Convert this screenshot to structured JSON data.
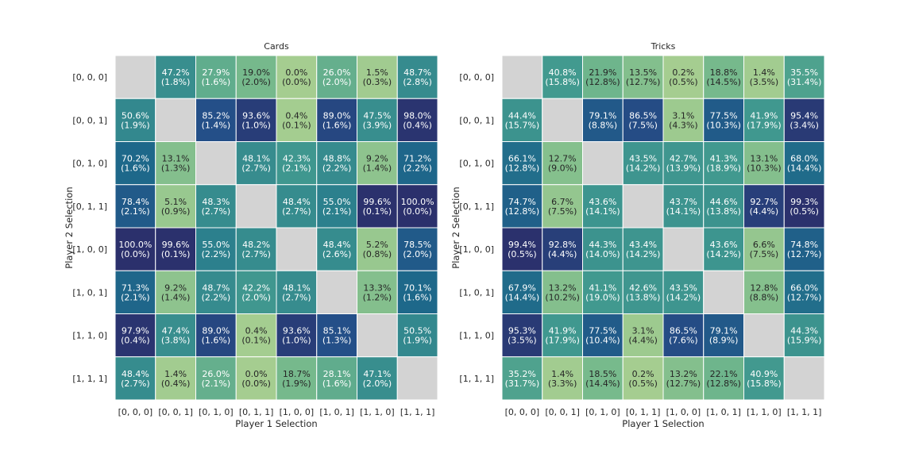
{
  "chart_data": [
    {
      "type": "heatmap",
      "title": "Cards",
      "xlabel": "Player 1 Selection",
      "ylabel": "Player 2 Selection",
      "x_categories": [
        "[0, 0, 0]",
        "[0, 0, 1]",
        "[0, 1, 0]",
        "[0, 1, 1]",
        "[1, 0, 0]",
        "[1, 0, 1]",
        "[1, 1, 0]",
        "[1, 1, 1]"
      ],
      "y_categories": [
        "[0, 0, 0]",
        "[0, 0, 1]",
        "[0, 1, 0]",
        "[0, 1, 1]",
        "[1, 0, 0]",
        "[1, 0, 1]",
        "[1, 1, 0]",
        "[1, 1, 1]"
      ],
      "values": [
        [
          null,
          47.2,
          27.9,
          19.0,
          0.0,
          26.0,
          1.5,
          48.7
        ],
        [
          50.6,
          null,
          85.2,
          93.6,
          0.4,
          89.0,
          47.5,
          98.0
        ],
        [
          70.2,
          13.1,
          null,
          48.1,
          42.3,
          48.8,
          9.2,
          71.2
        ],
        [
          78.4,
          5.1,
          48.3,
          null,
          48.4,
          55.0,
          99.6,
          100.0
        ],
        [
          100.0,
          99.6,
          55.0,
          48.2,
          null,
          48.4,
          5.2,
          78.5
        ],
        [
          71.3,
          9.2,
          48.7,
          42.2,
          48.1,
          null,
          13.3,
          70.1
        ],
        [
          97.9,
          47.4,
          89.0,
          0.4,
          93.6,
          85.1,
          null,
          50.5
        ],
        [
          48.4,
          1.4,
          26.0,
          0.0,
          18.7,
          28.1,
          47.1,
          null
        ]
      ],
      "errors": [
        [
          null,
          1.8,
          1.6,
          2.0,
          0.0,
          2.0,
          0.3,
          2.8
        ],
        [
          1.9,
          null,
          1.4,
          1.0,
          0.1,
          1.6,
          3.9,
          0.4
        ],
        [
          1.6,
          1.3,
          null,
          2.7,
          2.1,
          2.2,
          1.4,
          2.2
        ],
        [
          2.1,
          0.9,
          2.7,
          null,
          2.7,
          2.1,
          0.1,
          0.0
        ],
        [
          0.0,
          0.1,
          2.2,
          2.7,
          null,
          2.6,
          0.8,
          2.0
        ],
        [
          2.1,
          1.4,
          2.2,
          2.0,
          2.7,
          null,
          1.2,
          1.6
        ],
        [
          0.4,
          3.8,
          1.6,
          0.1,
          1.0,
          1.3,
          null,
          1.9
        ],
        [
          2.7,
          0.4,
          2.1,
          0.0,
          1.9,
          1.6,
          2.0,
          null
        ]
      ],
      "vlim": [
        0,
        100
      ],
      "diagonal_color": "#d3d3d3",
      "colormap": "crest",
      "grid": false,
      "legend": "none"
    },
    {
      "type": "heatmap",
      "title": "Tricks",
      "xlabel": "Player 1 Selection",
      "ylabel": "Player 2 Selection",
      "x_categories": [
        "[0, 0, 0]",
        "[0, 0, 1]",
        "[0, 1, 0]",
        "[0, 1, 1]",
        "[1, 0, 0]",
        "[1, 0, 1]",
        "[1, 1, 0]",
        "[1, 1, 1]"
      ],
      "y_categories": [
        "[0, 0, 0]",
        "[0, 0, 1]",
        "[0, 1, 0]",
        "[0, 1, 1]",
        "[1, 0, 0]",
        "[1, 0, 1]",
        "[1, 1, 0]",
        "[1, 1, 1]"
      ],
      "values": [
        [
          null,
          40.8,
          21.9,
          13.5,
          0.2,
          18.8,
          1.4,
          35.5
        ],
        [
          44.4,
          null,
          79.1,
          86.5,
          3.1,
          77.5,
          41.9,
          95.4
        ],
        [
          66.1,
          12.7,
          null,
          43.5,
          42.7,
          41.3,
          13.1,
          68.0
        ],
        [
          74.7,
          6.7,
          43.6,
          null,
          43.7,
          44.6,
          92.7,
          99.3
        ],
        [
          99.4,
          92.8,
          44.3,
          43.4,
          null,
          43.6,
          6.6,
          74.8
        ],
        [
          67.9,
          13.2,
          41.1,
          42.6,
          43.5,
          null,
          12.8,
          66.0
        ],
        [
          95.3,
          41.9,
          77.5,
          3.1,
          86.5,
          79.1,
          null,
          44.3
        ],
        [
          35.2,
          1.4,
          18.5,
          0.2,
          13.2,
          22.1,
          40.9,
          null
        ]
      ],
      "errors": [
        [
          null,
          15.8,
          12.8,
          12.7,
          0.5,
          14.5,
          3.5,
          31.4
        ],
        [
          15.7,
          null,
          8.8,
          7.5,
          4.3,
          10.3,
          17.9,
          3.4
        ],
        [
          12.8,
          9.0,
          null,
          14.2,
          13.9,
          18.9,
          10.3,
          14.4
        ],
        [
          12.8,
          7.5,
          14.1,
          null,
          14.1,
          13.8,
          4.4,
          0.5
        ],
        [
          0.5,
          4.4,
          14.0,
          14.2,
          null,
          14.2,
          7.5,
          12.7
        ],
        [
          14.4,
          10.2,
          19.0,
          13.8,
          14.2,
          null,
          8.8,
          12.7
        ],
        [
          3.5,
          17.9,
          10.4,
          4.4,
          7.6,
          8.9,
          null,
          15.9
        ],
        [
          31.7,
          3.3,
          14.4,
          0.5,
          12.7,
          12.8,
          15.8,
          null
        ]
      ],
      "vlim": [
        0,
        100
      ],
      "diagonal_color": "#d3d3d3",
      "colormap": "crest",
      "grid": false,
      "legend": "none"
    }
  ]
}
